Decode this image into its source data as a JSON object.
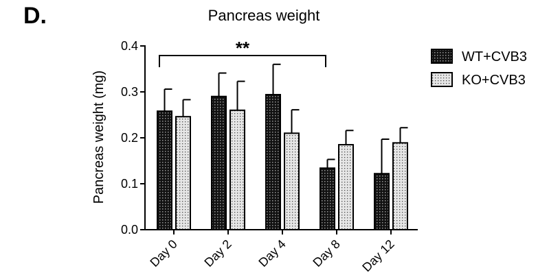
{
  "panel_letter": "D.",
  "chart_data": {
    "type": "bar",
    "title": "Pancreas weight",
    "xlabel": "",
    "ylabel": "Pancreas weight (mg)",
    "ylim": [
      0,
      0.4
    ],
    "yticks": [
      "0.0",
      "0.1",
      "0.2",
      "0.3",
      "0.4"
    ],
    "grid": false,
    "legend_position": "top-right",
    "categories": [
      "Day 0",
      "Day 2",
      "Day 4",
      "Day 8",
      "Day 12"
    ],
    "series": [
      {
        "name": "WT+CVB3",
        "pattern": "dark-hatched",
        "values": [
          0.258,
          0.29,
          0.294,
          0.134,
          0.122
        ],
        "errors": [
          0.048,
          0.051,
          0.066,
          0.019,
          0.075
        ]
      },
      {
        "name": "KO+CVB3",
        "pattern": "light-dotted",
        "values": [
          0.246,
          0.26,
          0.21,
          0.185,
          0.189
        ],
        "errors": [
          0.037,
          0.063,
          0.051,
          0.031,
          0.033
        ]
      }
    ],
    "annotations": [
      {
        "text": "**",
        "from_category": "Day 0",
        "to_category": "Day 8"
      }
    ]
  }
}
